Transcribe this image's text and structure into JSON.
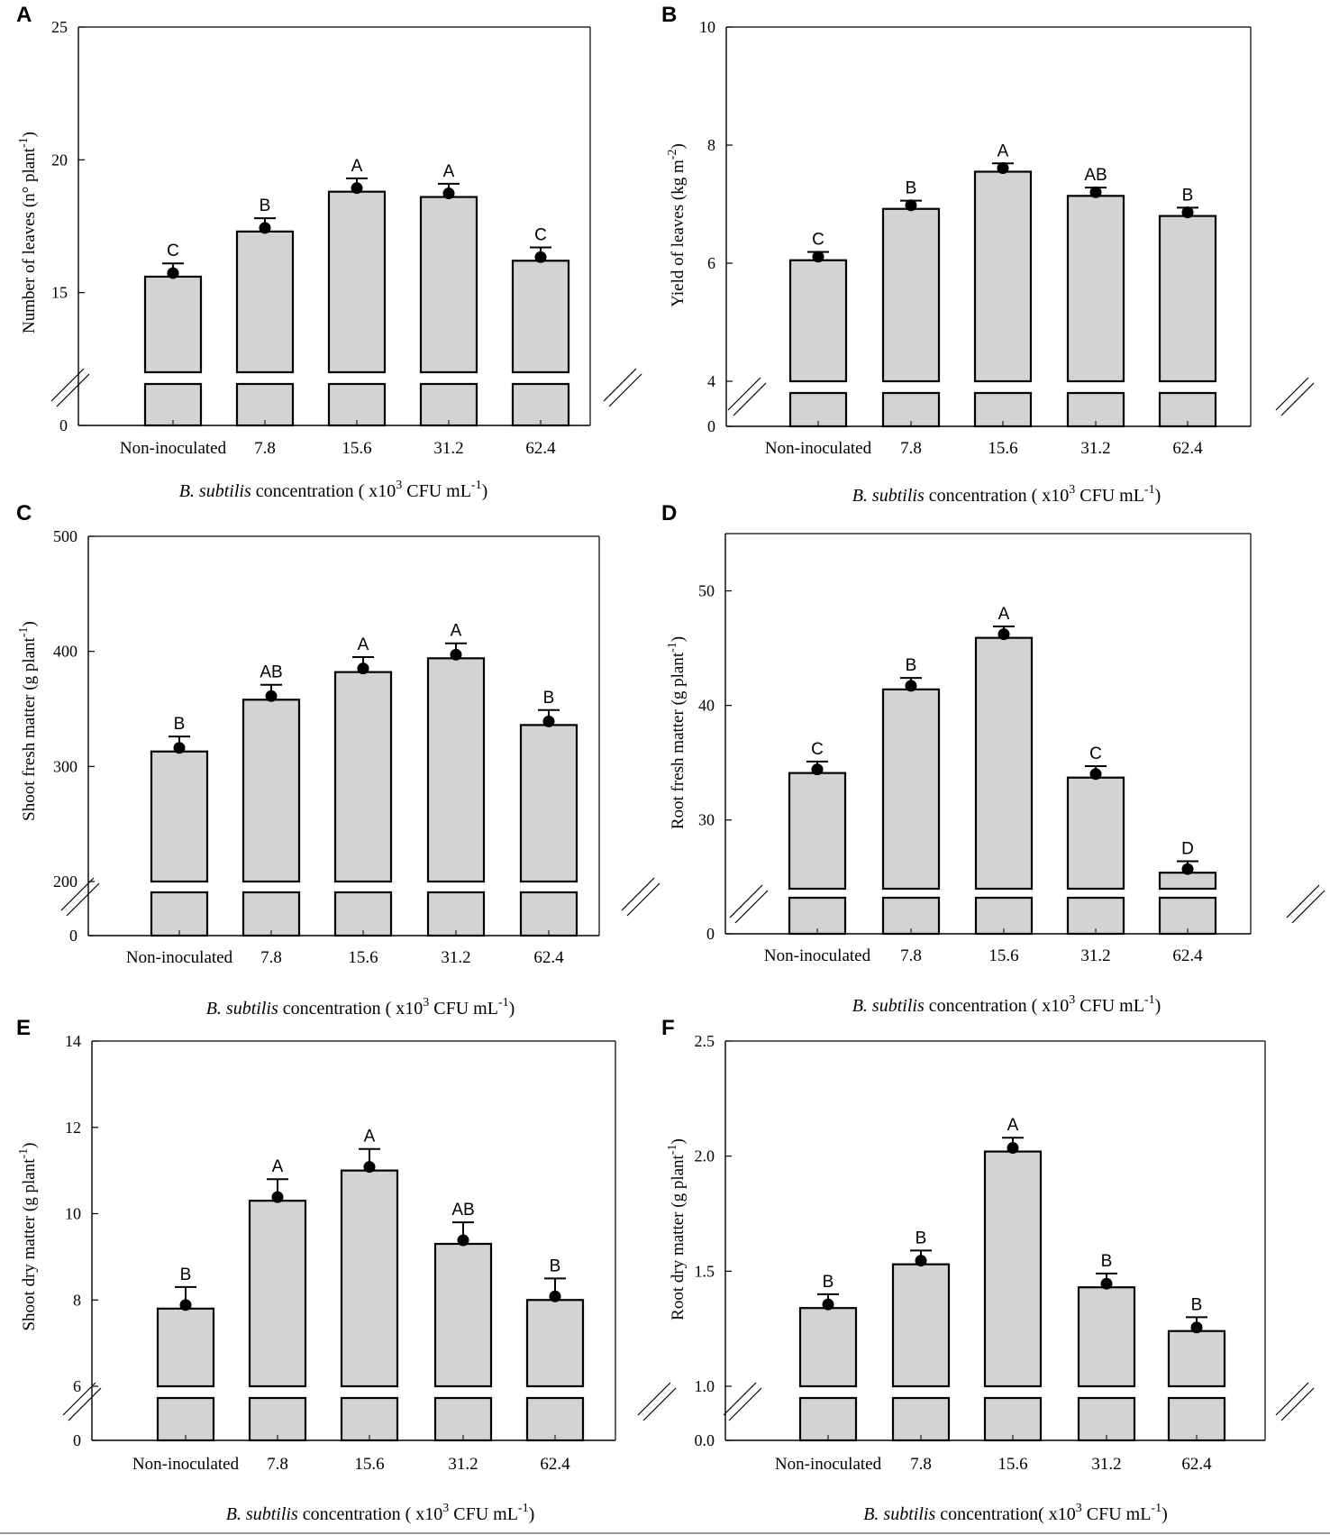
{
  "chart_data": [
    {
      "panel": "A",
      "type": "bar",
      "categories": [
        "Non-inoculated",
        "7.8",
        "15.6",
        "31.2",
        "62.4"
      ],
      "values": [
        15.6,
        17.3,
        18.8,
        18.6,
        16.2
      ],
      "errors": [
        0.5,
        0.5,
        0.5,
        0.5,
        0.5
      ],
      "letters": [
        "C",
        "B",
        "A",
        "A",
        "C"
      ],
      "ylabel_main": "Number of leaves (n° plant",
      "ylabel_sup": "-1",
      "ylabel_end": ")",
      "xlabel": {
        "italic": "B. subtilis",
        "text": " concentration ( x10",
        "sup1": "3",
        "text2": " CFU mL",
        "sup2": "-1",
        "text3": ")"
      },
      "y_break": 12,
      "ylim": [
        12,
        25
      ],
      "ticks": [
        15,
        20,
        25
      ],
      "tick_labels": [
        "15",
        "20",
        "25"
      ],
      "zero_label": "0"
    },
    {
      "panel": "B",
      "type": "bar",
      "categories": [
        "Non-inoculated",
        "7.8",
        "15.6",
        "31.2",
        "62.4"
      ],
      "values": [
        6.05,
        6.92,
        7.55,
        7.14,
        6.8
      ],
      "errors": [
        0.14,
        0.14,
        0.14,
        0.14,
        0.14
      ],
      "letters": [
        "C",
        "B",
        "A",
        "AB",
        "B"
      ],
      "ylabel_main": "Yield of leaves (kg m",
      "ylabel_sup": "-2",
      "ylabel_end": ")",
      "xlabel": {
        "italic": "B. subtilis",
        "text": " concentration ( x10",
        "sup1": "3",
        "text2": " CFU mL",
        "sup2": "-1",
        "text3": ")"
      },
      "y_break": 4,
      "ylim": [
        4,
        10
      ],
      "ticks": [
        4,
        6,
        8,
        10
      ],
      "tick_labels": [
        "4",
        "6",
        "8",
        "10"
      ],
      "zero_label": "0"
    },
    {
      "panel": "C",
      "type": "bar",
      "categories": [
        "Non-inoculated",
        "7.8",
        "15.6",
        "31.2",
        "62.4"
      ],
      "values": [
        313,
        358,
        382,
        394,
        336
      ],
      "errors": [
        13,
        13,
        13,
        13,
        13
      ],
      "letters": [
        "B",
        "AB",
        "A",
        "A",
        "B"
      ],
      "ylabel_main": "Shoot fresh matter (g plant",
      "ylabel_sup": "-1",
      "ylabel_end": ")",
      "xlabel": {
        "italic": "B. subtilis",
        "text": " concentration ( x10",
        "sup1": "3",
        "text2": " CFU mL",
        "sup2": "-1",
        "text3": ")"
      },
      "y_break": 200,
      "ylim": [
        200,
        500
      ],
      "ticks": [
        200,
        300,
        400,
        500
      ],
      "tick_labels": [
        "200",
        "300",
        "400",
        "500"
      ],
      "zero_label": "0"
    },
    {
      "panel": "D",
      "type": "bar",
      "categories": [
        "Non-inoculated",
        "7.8",
        "15.6",
        "31.2",
        "62.4"
      ],
      "values": [
        34.1,
        41.4,
        45.9,
        33.7,
        25.4
      ],
      "errors": [
        1.0,
        1.0,
        1.0,
        1.0,
        1.0
      ],
      "letters": [
        "C",
        "B",
        "A",
        "C",
        "D"
      ],
      "ylabel_main": "Root fresh matter (g plant",
      "ylabel_sup": "-1",
      "ylabel_end": ")",
      "xlabel": {
        "italic": "B. subtilis",
        "text": " concentration ( x10",
        "sup1": "3",
        "text2": " CFU mL",
        "sup2": "-1",
        "text3": ")"
      },
      "y_break": 24,
      "ylim": [
        24,
        55
      ],
      "ticks": [
        30,
        40,
        50
      ],
      "tick_labels": [
        "30",
        "40",
        "50"
      ],
      "zero_label": "0"
    },
    {
      "panel": "E",
      "type": "bar",
      "categories": [
        "Non-inoculated",
        "7.8",
        "15.6",
        "31.2",
        "62.4"
      ],
      "values": [
        7.8,
        10.3,
        11.0,
        9.3,
        8.0
      ],
      "errors": [
        0.5,
        0.5,
        0.5,
        0.5,
        0.5
      ],
      "letters": [
        "B",
        "A",
        "A",
        "AB",
        "B"
      ],
      "ylabel_main": "Shoot dry matter (g plant",
      "ylabel_sup": "-1",
      "ylabel_end": ")",
      "xlabel": {
        "italic": "B. subtilis",
        "text": " concentration ( x10",
        "sup1": "3",
        "text2": " CFU mL",
        "sup2": "-1",
        "text3": ")"
      },
      "y_break": 6,
      "ylim": [
        6,
        14
      ],
      "ticks": [
        6,
        8,
        10,
        12,
        14
      ],
      "tick_labels": [
        "6",
        "8",
        "10",
        "12",
        "14"
      ],
      "zero_label": "0"
    },
    {
      "panel": "F",
      "type": "bar",
      "categories": [
        "Non-inoculated",
        "7.8",
        "15.6",
        "31.2",
        "62.4"
      ],
      "values": [
        1.34,
        1.53,
        2.02,
        1.43,
        1.24
      ],
      "errors": [
        0.06,
        0.06,
        0.06,
        0.06,
        0.06
      ],
      "letters": [
        "B",
        "B",
        "A",
        "B",
        "B"
      ],
      "ylabel_main": "Root dry matter (g plant",
      "ylabel_sup": "-1",
      "ylabel_end": ")",
      "xlabel": {
        "italic": "B. subtilis",
        "text": " concentration( x10",
        "sup1": "3",
        "text2": " CFU mL",
        "sup2": "-1",
        "text3": ")"
      },
      "y_break": 1.0,
      "ylim": [
        1.0,
        2.5
      ],
      "ticks": [
        1.0,
        1.5,
        2.0,
        2.5
      ],
      "tick_labels": [
        "1.0",
        "1.5",
        "2.0",
        "2.5"
      ],
      "zero_label": "0.0"
    }
  ]
}
